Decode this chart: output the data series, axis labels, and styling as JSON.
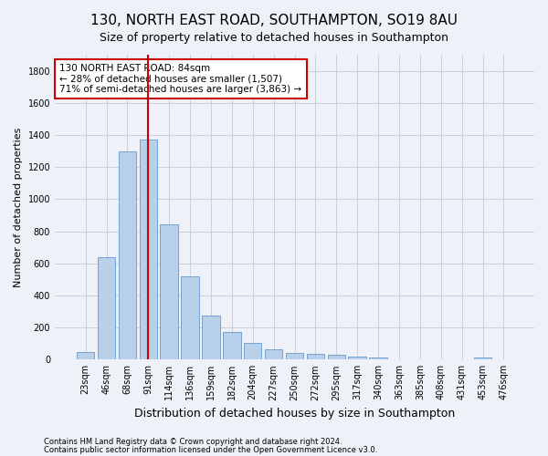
{
  "title": "130, NORTH EAST ROAD, SOUTHAMPTON, SO19 8AU",
  "subtitle": "Size of property relative to detached houses in Southampton",
  "xlabel": "Distribution of detached houses by size in Southampton",
  "ylabel": "Number of detached properties",
  "categories": [
    "23sqm",
    "46sqm",
    "68sqm",
    "91sqm",
    "114sqm",
    "136sqm",
    "159sqm",
    "182sqm",
    "204sqm",
    "227sqm",
    "250sqm",
    "272sqm",
    "295sqm",
    "317sqm",
    "340sqm",
    "363sqm",
    "385sqm",
    "408sqm",
    "431sqm",
    "453sqm",
    "476sqm"
  ],
  "values": [
    50,
    640,
    1300,
    1370,
    845,
    520,
    275,
    175,
    105,
    65,
    40,
    35,
    30,
    20,
    15,
    0,
    0,
    0,
    0,
    15,
    0
  ],
  "bar_color": "#b8d0ea",
  "bar_edge_color": "#6699cc",
  "vline_color": "#cc0000",
  "vline_pos": 3.0,
  "annotation_line1": "130 NORTH EAST ROAD: 84sqm",
  "annotation_line2": "← 28% of detached houses are smaller (1,507)",
  "annotation_line3": "71% of semi-detached houses are larger (3,863) →",
  "annotation_box_color": "#ffffff",
  "annotation_box_edge": "#cc0000",
  "ylim": [
    0,
    1900
  ],
  "yticks": [
    0,
    200,
    400,
    600,
    800,
    1000,
    1200,
    1400,
    1600,
    1800
  ],
  "footer1": "Contains HM Land Registry data © Crown copyright and database right 2024.",
  "footer2": "Contains public sector information licensed under the Open Government Licence v3.0.",
  "bg_color": "#eef2f8",
  "plot_bg_color": "#eef2f8",
  "title_fontsize": 11,
  "subtitle_fontsize": 9,
  "tick_fontsize": 7,
  "ylabel_fontsize": 8,
  "xlabel_fontsize": 9,
  "footer_fontsize": 6,
  "annotation_fontsize": 7.5
}
